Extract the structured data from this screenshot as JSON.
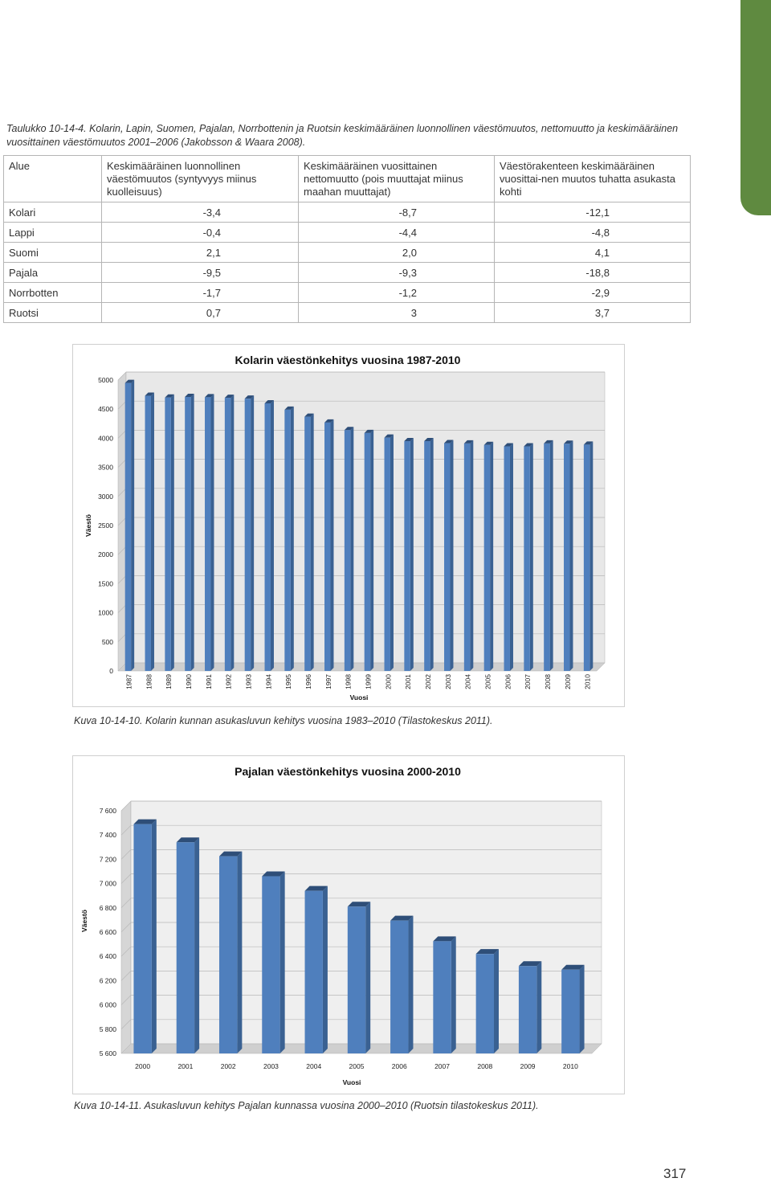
{
  "caption_top": "Taulukko 10-14-4. Kolarin, Lapin, Suomen, Pajalan, Norrbottenin ja Ruotsin keskimääräinen luonnollinen väestömuutos, nettomuutto ja keskimääräinen vuosittainen väestömuutos 2001–2006 (Jakobsson & Waara 2008).",
  "table": {
    "headers": [
      "Alue",
      "Keskimääräinen luonnollinen väestömuutos (syntyvyys miinus kuolleisuus)",
      "Keskimääräinen vuosittainen nettomuutto (pois muuttajat miinus maahan muuttajat)",
      "Väestörakenteen keskimääräinen vuosittai-nen muutos tuhatta asukasta kohti"
    ],
    "rows": [
      [
        "Kolari",
        "-3,4",
        "-8,7",
        "-12,1"
      ],
      [
        "Lappi",
        "-0,4",
        "-4,4",
        "-4,8"
      ],
      [
        "Suomi",
        "2,1",
        "2,0",
        "4,1"
      ],
      [
        "Pajala",
        "-9,5",
        "-9,3",
        "-18,8"
      ],
      [
        "Norrbotten",
        "-1,7",
        "-1,2",
        "-2,9"
      ],
      [
        "Ruotsi",
        "0,7",
        "3",
        "3,7"
      ]
    ]
  },
  "chart_data": [
    {
      "type": "bar",
      "title": "Kolarin väestönkehitys vuosina 1987-2010",
      "xlabel": "Vuosi",
      "ylabel": "Väestö",
      "ylim": [
        0,
        5000
      ],
      "yticks": [
        "0",
        "500",
        "1000",
        "1500",
        "2000",
        "2500",
        "3000",
        "3500",
        "4000",
        "4500",
        "5000"
      ],
      "categories": [
        "1987",
        "1988",
        "1989",
        "1990",
        "1991",
        "1992",
        "1993",
        "1994",
        "1995",
        "1996",
        "1997",
        "1998",
        "1999",
        "2000",
        "2001",
        "2002",
        "2003",
        "2004",
        "2005",
        "2006",
        "2007",
        "2008",
        "2009",
        "2010"
      ],
      "values": [
        4950,
        4730,
        4700,
        4710,
        4705,
        4695,
        4680,
        4600,
        4490,
        4370,
        4270,
        4140,
        4090,
        4010,
        3950,
        3950,
        3915,
        3910,
        3885,
        3860,
        3860,
        3910,
        3905,
        3890
      ],
      "grid": true,
      "legend": "none",
      "colors": {
        "bar_front": "#4f7fbd",
        "bar_side": "#3a6192",
        "bar_top": "#2e4e78",
        "plot_bg": "#e8e8e8"
      }
    },
    {
      "type": "bar",
      "title": "Pajalan väestönkehitys vuosina 2000-2010",
      "xlabel": "Vuosi",
      "ylabel": "Väestö",
      "ylim": [
        5600,
        7600
      ],
      "yticks": [
        "5 600",
        "5 800",
        "6 000",
        "6 200",
        "6 400",
        "6 600",
        "6 800",
        "7 000",
        "7 200",
        "7 400",
        "7 600"
      ],
      "categories": [
        "2000",
        "2001",
        "2002",
        "2003",
        "2004",
        "2005",
        "2006",
        "2007",
        "2008",
        "2009",
        "2010"
      ],
      "values": [
        7490,
        7340,
        7225,
        7060,
        6940,
        6810,
        6695,
        6525,
        6420,
        6320,
        6290
      ],
      "grid": true,
      "legend": "none",
      "colors": {
        "bar_front": "#4f7fbd",
        "bar_side": "#3a6192",
        "bar_top": "#2e4e78",
        "plot_bg": "#efefef"
      }
    }
  ],
  "caption_kolari": "Kuva 10-14-10.  Kolarin kunnan asukasluvun kehitys vuosina 1983–2010 (Tilastokeskus 2011).",
  "caption_pajala": "Kuva 10-14-11.  Asukasluvun kehitys Pajalan kunnassa vuosina 2000–2010 (Ruotsin tilastokeskus 2011).",
  "page_number": "317"
}
